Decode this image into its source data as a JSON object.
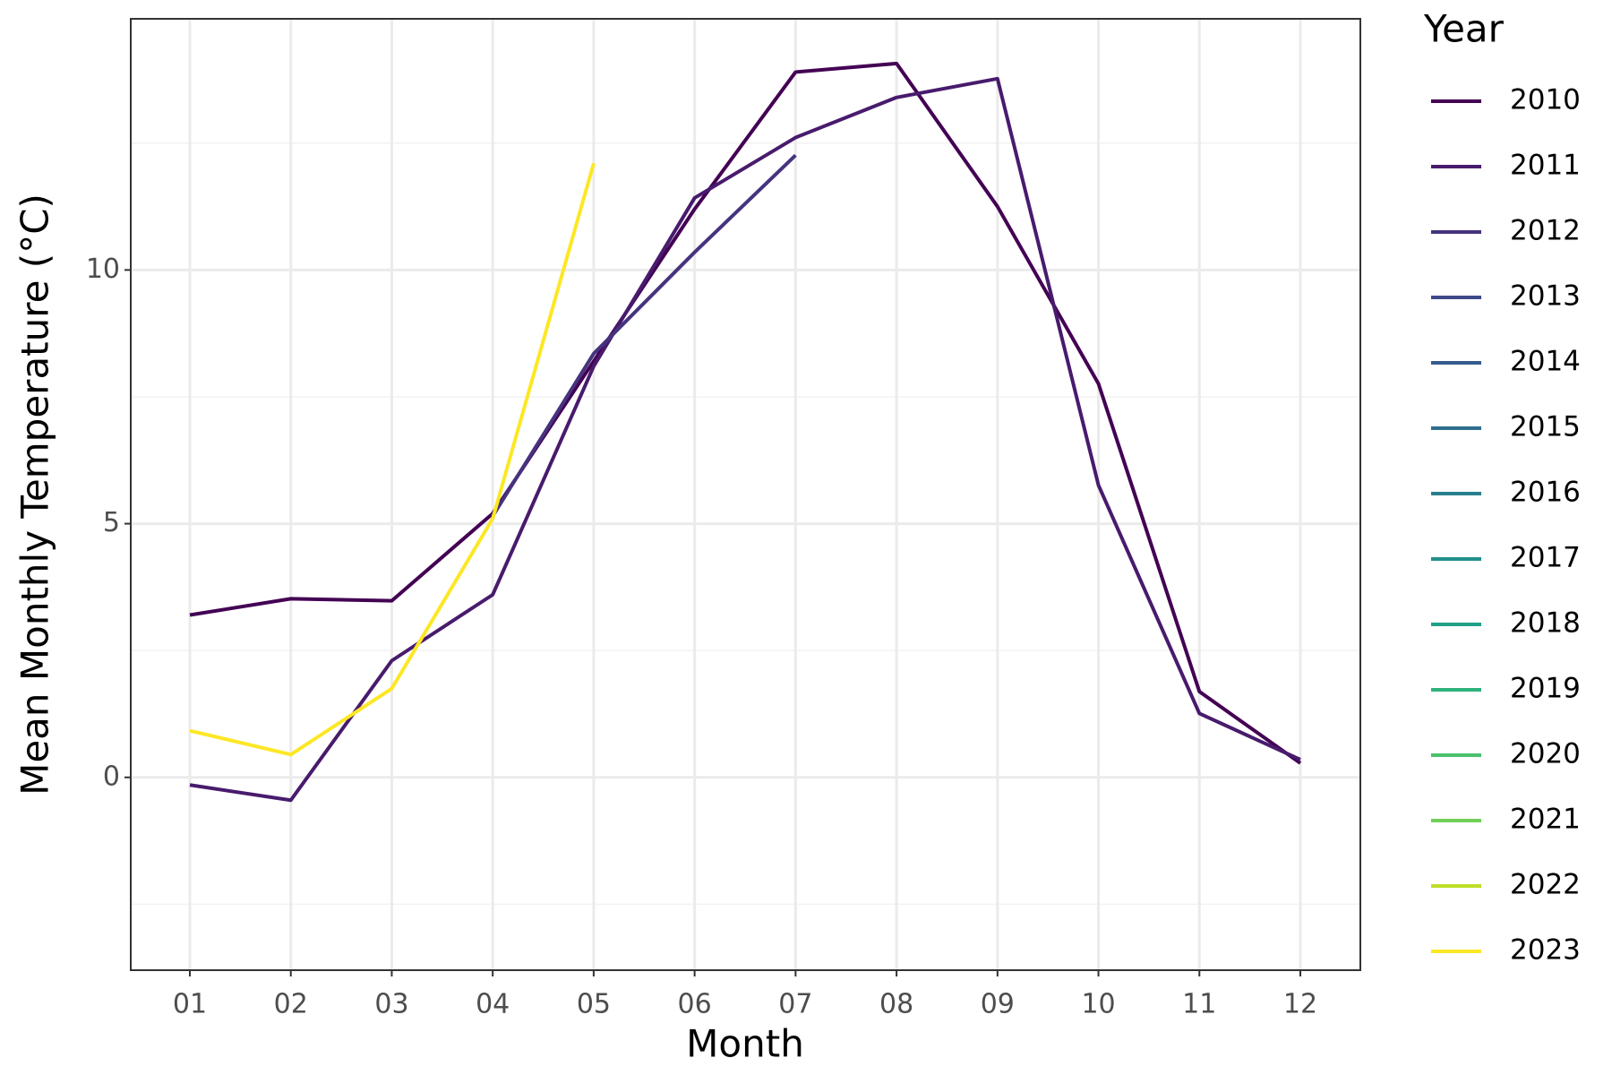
{
  "chart_data": {
    "type": "line",
    "x_label": "Month",
    "y_label": "Mean Monthly Temperature (°C)",
    "legend_title": "Year",
    "categories": [
      "01",
      "02",
      "03",
      "04",
      "05",
      "06",
      "07",
      "08",
      "09",
      "10",
      "11",
      "12"
    ],
    "ylim": [
      -3.8,
      14.95
    ],
    "yticks": [
      0,
      5,
      10
    ],
    "y_minor_ticks": [
      -2.5,
      2.5,
      7.5,
      12.5
    ],
    "grid": true,
    "legend": "right",
    "series": [
      {
        "name": "2010",
        "color": "#440154",
        "values": [
          3.2,
          3.52,
          3.48,
          5.2,
          8.2,
          11.2,
          13.9,
          14.07,
          11.25,
          7.76,
          1.69,
          0.28
        ]
      },
      {
        "name": "2011",
        "color": "#481b6d",
        "values": [
          -0.15,
          -0.45,
          2.3,
          3.6,
          8.1,
          11.42,
          12.61,
          13.4,
          13.77,
          5.76,
          1.26,
          0.35
        ]
      },
      {
        "name": "2012",
        "color": "#46337e",
        "values": [
          null,
          null,
          null,
          5.15,
          8.35,
          10.35,
          12.26,
          null,
          null,
          null,
          null,
          null
        ]
      },
      {
        "name": "2013",
        "color": "#3f4889",
        "values": [
          null,
          null,
          null,
          null,
          null,
          null,
          null,
          null,
          null,
          null,
          null,
          null
        ]
      },
      {
        "name": "2014",
        "color": "#365c8d",
        "values": [
          null,
          null,
          null,
          null,
          null,
          null,
          null,
          null,
          null,
          null,
          null,
          null
        ]
      },
      {
        "name": "2015",
        "color": "#2e6e8e",
        "values": [
          null,
          null,
          null,
          null,
          null,
          null,
          null,
          null,
          null,
          null,
          null,
          null
        ]
      },
      {
        "name": "2016",
        "color": "#277f8e",
        "values": [
          null,
          null,
          null,
          null,
          null,
          null,
          null,
          null,
          null,
          null,
          null,
          null
        ]
      },
      {
        "name": "2017",
        "color": "#21908c",
        "values": [
          null,
          null,
          null,
          null,
          null,
          null,
          null,
          null,
          null,
          null,
          null,
          null
        ]
      },
      {
        "name": "2018",
        "color": "#1fa187",
        "values": [
          null,
          null,
          null,
          null,
          null,
          null,
          null,
          null,
          null,
          null,
          null,
          null
        ]
      },
      {
        "name": "2019",
        "color": "#2db27d",
        "values": [
          null,
          null,
          null,
          null,
          null,
          null,
          null,
          null,
          null,
          null,
          null,
          null
        ]
      },
      {
        "name": "2020",
        "color": "#4ac16d",
        "values": [
          null,
          null,
          null,
          null,
          null,
          null,
          null,
          null,
          null,
          null,
          null,
          null
        ]
      },
      {
        "name": "2021",
        "color": "#71cf57",
        "values": [
          null,
          null,
          null,
          null,
          null,
          null,
          null,
          null,
          null,
          null,
          null,
          null
        ]
      },
      {
        "name": "2022",
        "color": "#bddf26",
        "values": [
          null,
          null,
          null,
          null,
          null,
          null,
          null,
          null,
          null,
          null,
          null,
          null
        ]
      },
      {
        "name": "2023",
        "color": "#fde725",
        "values": [
          0.92,
          0.45,
          1.75,
          5.1,
          12.1,
          null,
          null,
          null,
          null,
          null,
          null,
          null
        ]
      }
    ]
  }
}
